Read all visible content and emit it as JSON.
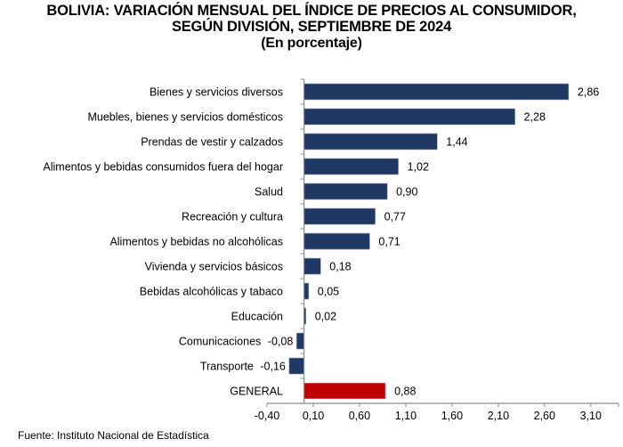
{
  "chart_data": {
    "type": "bar",
    "orientation": "horizontal",
    "title_lines": [
      "BOLIVIA: VARIACIÓN MENSUAL DEL ÍNDICE DE PRECIOS AL CONSUMIDOR,",
      "SEGÚN DIVISIÓN, SEPTIEMBRE DE 2024",
      "(En porcentaje)"
    ],
    "categories": [
      "Bienes y servicios diversos",
      "Muebles, bienes y servicios domésticos",
      "Prendas de vestir y calzados",
      "Alimentos y bebidas consumidos fuera del hogar",
      "Salud",
      "Recreación y cultura",
      "Alimentos y bebidas no alcohólicas",
      "Vivienda y servicios básicos",
      "Bebidas alcohólicas y tabaco",
      "Educación",
      "Comunicaciones",
      "Transporte",
      "GENERAL"
    ],
    "values": [
      2.86,
      2.28,
      1.44,
      1.02,
      0.9,
      0.77,
      0.71,
      0.18,
      0.05,
      0.02,
      -0.08,
      -0.16,
      0.88
    ],
    "value_labels": [
      "2,86",
      "2,28",
      "1,44",
      "1,02",
      "0,90",
      "0,77",
      "0,71",
      "0,18",
      "0,05",
      "0,02",
      "-0,08",
      "-0,16",
      "0,88"
    ],
    "highlight_category": "GENERAL",
    "colors": {
      "bar": "#1f3864",
      "highlight": "#c00000",
      "axis": "#8c8c8c"
    },
    "xlim": [
      -0.4,
      3.4
    ],
    "xticks": [
      -0.4,
      0.1,
      0.6,
      1.1,
      1.6,
      2.1,
      2.6,
      3.1
    ],
    "xtick_labels": [
      "-0,40",
      "0,10",
      "0,60",
      "1,10",
      "1,60",
      "2,10",
      "2,60",
      "3,10"
    ],
    "xlabel": "",
    "ylabel": "",
    "grid": false,
    "legend": "none"
  },
  "source": "Fuente: Instituto Nacional de Estadística"
}
